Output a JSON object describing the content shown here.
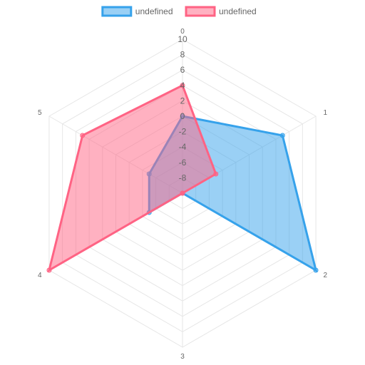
{
  "chart_data": {
    "type": "radar",
    "categories": [
      "0",
      "1",
      "2",
      "3",
      "4",
      "5"
    ],
    "scale": {
      "min": -10,
      "max": 10,
      "step": 2,
      "tick_labels": [
        "-8",
        "-6",
        "-4",
        "-2",
        "0",
        "2",
        "4",
        "6",
        "8",
        "10"
      ]
    },
    "series": [
      {
        "name": "undefined",
        "values": [
          0,
          5,
          10,
          -10,
          -5,
          -5
        ],
        "border_color": "#36a2eb",
        "fill_color": "rgba(54,162,235,0.5)"
      },
      {
        "name": "undefined",
        "values": [
          4,
          -5,
          -10,
          -10,
          10,
          5
        ],
        "border_color": "#ff6384",
        "fill_color": "rgba(255,99,132,0.5)"
      }
    ],
    "grid": true,
    "legend": "top"
  }
}
